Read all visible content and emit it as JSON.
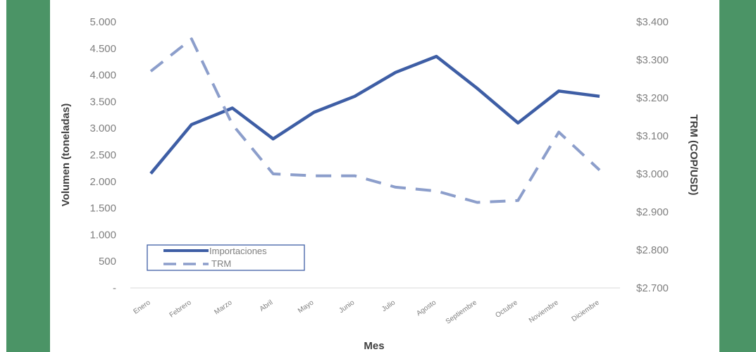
{
  "chart_data": {
    "type": "line",
    "categories": [
      "Enero",
      "Febrero",
      "Marzo",
      "Abril",
      "Mayo",
      "Junio",
      "Julio",
      "Agosto",
      "Septiembre",
      "Octubre",
      "Noviembre",
      "Diciembre"
    ],
    "series": [
      {
        "name": "Importaciones",
        "axis": "left",
        "style": "solid",
        "values": [
          2150,
          3070,
          3380,
          2800,
          3300,
          3600,
          4050,
          4350,
          3750,
          3100,
          3700,
          3600
        ]
      },
      {
        "name": "TRM",
        "axis": "right",
        "style": "dashed",
        "values": [
          3270,
          3355,
          3130,
          3000,
          2995,
          2995,
          2965,
          2955,
          2925,
          2930,
          3110,
          3010
        ]
      }
    ],
    "xlabel": "Mes",
    "ylabel": "Volumen (toneladas)",
    "y2label": "TRM (COP/USD)",
    "ylim": [
      0,
      5000
    ],
    "y2lim": [
      2700,
      3400
    ],
    "yticks": [
      "-",
      "500",
      "1.000",
      "1.500",
      "2.000",
      "2.500",
      "3.000",
      "3.500",
      "4.000",
      "4.500",
      "5.000"
    ],
    "y2ticks": [
      "$2.700",
      "$2.800",
      "$2.900",
      "$3.000",
      "$3.100",
      "$3.200",
      "$3.300",
      "$3.400"
    ],
    "legend_position": "bottom-left",
    "grid": false,
    "colors": {
      "line": "#3e5ea5",
      "border": "#4b9466",
      "text": "#7f7f7f",
      "title": "#404040"
    }
  }
}
